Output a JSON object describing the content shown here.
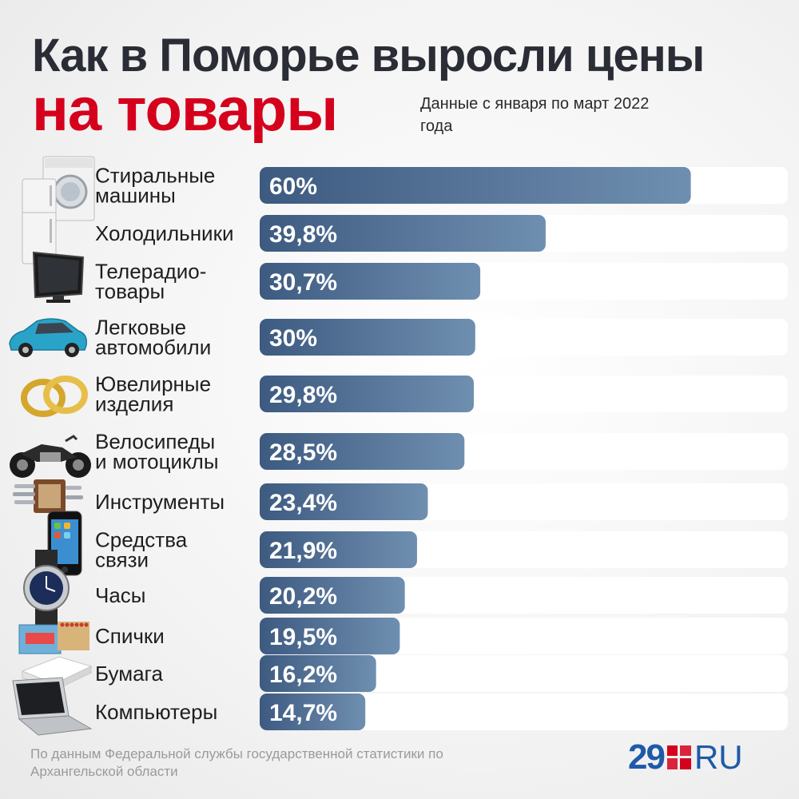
{
  "header": {
    "title_line1": "Как в Поморье выросли цены",
    "title_line2": "на товары",
    "subtitle": "Данные с января по март 2022 года"
  },
  "colors": {
    "title_dark": "#2a2d35",
    "title_accent": "#d5001c",
    "bar_light": "#6f8fb0",
    "bar_dark": "#3d5a80",
    "track": "#ffffff",
    "logo_blue": "#1f5aa8",
    "logo_red": "#d5001c"
  },
  "chart_data": {
    "type": "bar",
    "orientation": "horizontal",
    "unit": "%",
    "xlim": [
      0,
      73.5
    ],
    "categories": [
      "Стиральные машины",
      "Холодильники",
      "Телерадио-товары",
      "Легковые автомобили",
      "Ювелирные изделия",
      "Велосипеды и мотоциклы",
      "Инструменты",
      "Средства связи",
      "Часы",
      "Спички",
      "Бумага",
      "Компьютеры"
    ],
    "label_lines": [
      [
        "Стиральные",
        "машины"
      ],
      [
        "Холодильники"
      ],
      [
        "Телерадио-",
        "товары"
      ],
      [
        "Легковые",
        "автомобили"
      ],
      [
        "Ювелирные",
        "изделия"
      ],
      [
        "Велосипеды",
        "и мотоциклы"
      ],
      [
        "Инструменты"
      ],
      [
        "Средства",
        "связи"
      ],
      [
        "Часы"
      ],
      [
        "Спички"
      ],
      [
        "Бумага"
      ],
      [
        "Компьютеры"
      ]
    ],
    "values": [
      60,
      39.8,
      30.7,
      30,
      29.8,
      28.5,
      23.4,
      21.9,
      20.2,
      19.5,
      16.2,
      14.7
    ],
    "value_labels": [
      "60%",
      "39,8%",
      "30,7%",
      "30%",
      "29,8%",
      "28,5%",
      "23,4%",
      "21,9%",
      "20,2%",
      "19,5%",
      "16,2%",
      "14,7%"
    ]
  },
  "icons": [
    "washing-machine-icon",
    "refrigerator-icon",
    "tv-icon",
    "car-icon",
    "rings-icon",
    "motorcycle-icon",
    "tools-icon",
    "phone-icon",
    "watch-icon",
    "matches-icon",
    "paper-icon",
    "laptop-icon"
  ],
  "footer": {
    "source": "По данным Федеральной службы государственной статистики по Архангельской области"
  },
  "logo": {
    "number": "29",
    "suffix": "RU"
  }
}
